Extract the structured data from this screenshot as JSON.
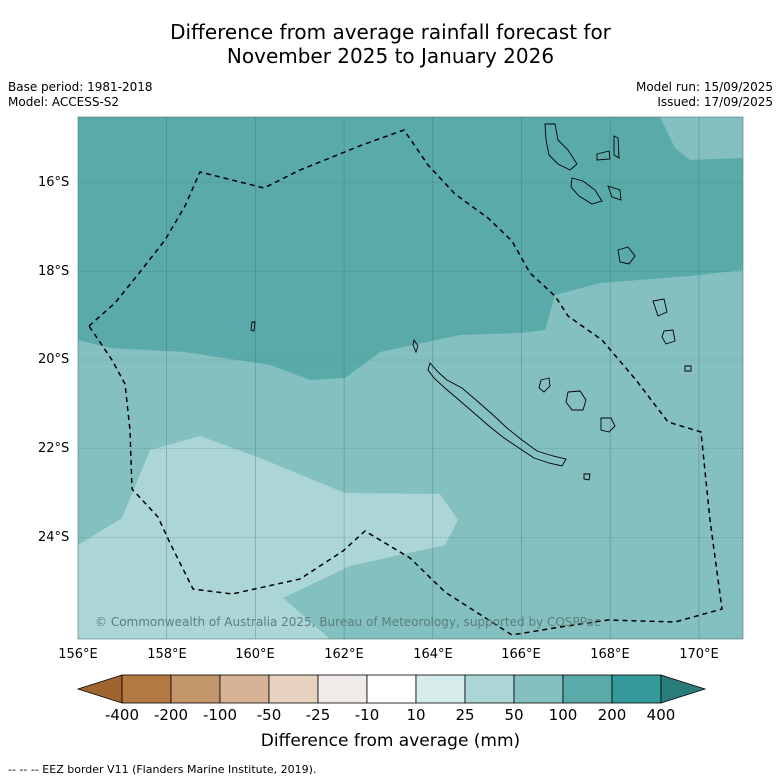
{
  "title_line1": "Difference from average rainfall forecast for",
  "title_line2": "November 2025 to January 2026",
  "base_period": "Base period: 1981-2018",
  "model": "Model: ACCESS-S2",
  "model_run": "Model run: 15/09/2025",
  "issued": "Issued: 17/09/2025",
  "lat_labels": [
    "16°S",
    "18°S",
    "20°S",
    "22°S",
    "24°S"
  ],
  "lon_labels": [
    "156°E",
    "158°E",
    "160°E",
    "162°E",
    "164°E",
    "166°E",
    "168°E",
    "170°E"
  ],
  "copyright": "© Commonwealth of Australia 2025, Bureau of Meteorology, supported by COSPPac",
  "colorbar": {
    "labels": [
      "-400",
      "-200",
      "-100",
      "-50",
      "-25",
      "-10",
      "10",
      "25",
      "50",
      "100",
      "200",
      "400"
    ],
    "colors": [
      "#a0652f",
      "#b27a42",
      "#c3956a",
      "#d5b394",
      "#e6d2bf",
      "#efebe8",
      "#ffffff",
      "#d5ecea",
      "#acd6d6",
      "#83c0bf",
      "#5aaaaa",
      "#33999a",
      "#2a7c7b"
    ],
    "title": "Difference from average (mm)"
  },
  "legend_footnote": "-- -- -- EEZ border V11 (Flanders Marine Institute, 2019).",
  "map_colors": {
    "band_100_200": "#5aaaaa",
    "band_50_100": "#83c0bf",
    "band_25_50": "#acd6d6"
  }
}
